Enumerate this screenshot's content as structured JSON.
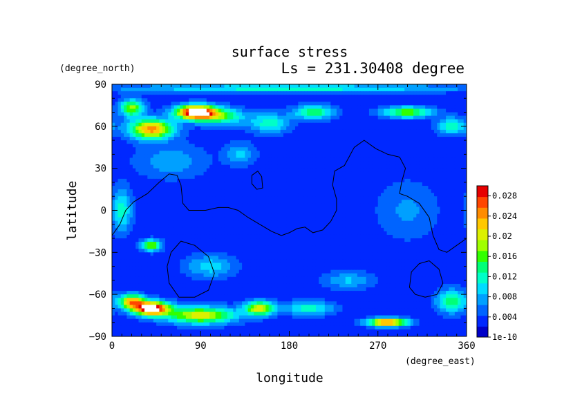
{
  "chart_data": {
    "type": "heatmap",
    "title": "surface stress",
    "subtitle": "Ls = 231.30408 degree",
    "xlabel": "longitude",
    "ylabel": "latitude",
    "x_unit": "(degree_east)",
    "y_unit": "(degree_north)",
    "xlim": [
      0,
      360
    ],
    "ylim": [
      -90,
      90
    ],
    "xticks": [
      "0",
      "90",
      "180",
      "270",
      "360"
    ],
    "xtick_values": [
      0,
      90,
      180,
      270,
      360
    ],
    "yticks": [
      "90",
      "60",
      "30",
      "0",
      "−30",
      "−60",
      "−90"
    ],
    "ytick_values": [
      90,
      60,
      30,
      0,
      -30,
      -60,
      -90
    ],
    "colorbar": {
      "labels": [
        "0.028",
        "0.024",
        "0.02",
        "0.016",
        "0.012",
        "0.008",
        "0.004",
        "1e-10"
      ],
      "label_values": [
        0.028,
        0.024,
        0.02,
        0.016,
        0.012,
        0.008,
        0.004,
        0
      ],
      "range": [
        0,
        0.03
      ],
      "colors": [
        "#0000c8",
        "#0028ff",
        "#0064ff",
        "#00a0ff",
        "#00dcff",
        "#00ffc8",
        "#00ff78",
        "#32ff00",
        "#a0ff00",
        "#dcf000",
        "#ffc800",
        "#ff8c00",
        "#ff4600",
        "#e60000"
      ]
    },
    "field": {
      "background": 0.003,
      "blobs": [
        {
          "lon": 85,
          "lat": 70,
          "slon": 20,
          "slat": 5,
          "v": 0.03
        },
        {
          "lon": 110,
          "lat": 67,
          "slon": 25,
          "slat": 6,
          "v": 0.012
        },
        {
          "lon": 40,
          "lat": 58,
          "slon": 22,
          "slat": 7,
          "v": 0.022
        },
        {
          "lon": 20,
          "lat": 73,
          "slon": 12,
          "slat": 6,
          "v": 0.015
        },
        {
          "lon": 160,
          "lat": 62,
          "slon": 20,
          "slat": 7,
          "v": 0.009
        },
        {
          "lon": 205,
          "lat": 70,
          "slon": 20,
          "slat": 5,
          "v": 0.012
        },
        {
          "lon": 300,
          "lat": 70,
          "slon": 25,
          "slat": 4,
          "v": 0.014
        },
        {
          "lon": 345,
          "lat": 60,
          "slon": 15,
          "slat": 6,
          "v": 0.01
        },
        {
          "lon": 180,
          "lat": 87,
          "slon": 180,
          "slat": 3,
          "v": 0.009
        },
        {
          "lon": 60,
          "lat": 35,
          "slon": 35,
          "slat": 12,
          "v": 0.005
        },
        {
          "lon": 10,
          "lat": 0,
          "slon": 10,
          "slat": 15,
          "v": 0.009
        },
        {
          "lon": 40,
          "lat": -25,
          "slon": 10,
          "slat": 4,
          "v": 0.015
        },
        {
          "lon": 20,
          "lat": -65,
          "slon": 12,
          "slat": 5,
          "v": 0.02
        },
        {
          "lon": 40,
          "lat": -70,
          "slon": 18,
          "slat": 5,
          "v": 0.03
        },
        {
          "lon": 90,
          "lat": -75,
          "slon": 35,
          "slat": 6,
          "v": 0.018
        },
        {
          "lon": 150,
          "lat": -70,
          "slon": 15,
          "slat": 5,
          "v": 0.018
        },
        {
          "lon": 280,
          "lat": -80,
          "slon": 20,
          "slat": 3,
          "v": 0.024
        },
        {
          "lon": 345,
          "lat": -65,
          "slon": 15,
          "slat": 8,
          "v": 0.012
        },
        {
          "lon": 100,
          "lat": -40,
          "slon": 25,
          "slat": 8,
          "v": 0.007
        },
        {
          "lon": 240,
          "lat": -50,
          "slon": 25,
          "slat": 6,
          "v": 0.006
        },
        {
          "lon": 200,
          "lat": -70,
          "slon": 25,
          "slat": 5,
          "v": 0.009
        },
        {
          "lon": 300,
          "lat": 0,
          "slon": 30,
          "slat": 20,
          "v": 0.004
        },
        {
          "lon": 130,
          "lat": 40,
          "slon": 15,
          "slat": 8,
          "v": 0.006
        }
      ]
    },
    "contours": [
      [
        [
          0,
          -18
        ],
        [
          8,
          -10
        ],
        [
          14,
          0
        ],
        [
          22,
          6
        ],
        [
          36,
          12
        ],
        [
          48,
          20
        ],
        [
          58,
          26
        ],
        [
          66,
          25
        ],
        [
          70,
          18
        ],
        [
          72,
          5
        ],
        [
          78,
          0
        ],
        [
          95,
          0
        ],
        [
          108,
          2
        ],
        [
          118,
          2
        ],
        [
          128,
          0
        ],
        [
          138,
          -5
        ],
        [
          150,
          -10
        ],
        [
          162,
          -15
        ],
        [
          172,
          -18
        ],
        [
          180,
          -16
        ],
        [
          188,
          -13
        ],
        [
          196,
          -12
        ],
        [
          204,
          -16
        ],
        [
          214,
          -14
        ],
        [
          222,
          -8
        ],
        [
          228,
          0
        ],
        [
          228,
          8
        ],
        [
          224,
          18
        ],
        [
          226,
          28
        ],
        [
          236,
          32
        ],
        [
          246,
          45
        ],
        [
          256,
          50
        ],
        [
          268,
          44
        ],
        [
          280,
          40
        ],
        [
          292,
          38
        ],
        [
          298,
          30
        ],
        [
          294,
          20
        ],
        [
          292,
          12
        ],
        [
          300,
          10
        ],
        [
          312,
          5
        ],
        [
          322,
          -5
        ],
        [
          326,
          -18
        ],
        [
          332,
          -28
        ],
        [
          340,
          -30
        ],
        [
          352,
          -24
        ],
        [
          360,
          -20
        ]
      ],
      [
        [
          142,
          25
        ],
        [
          148,
          28
        ],
        [
          152,
          24
        ],
        [
          153,
          16
        ],
        [
          147,
          15
        ],
        [
          142,
          19
        ],
        [
          142,
          25
        ]
      ],
      [
        [
          56,
          -40
        ],
        [
          60,
          -30
        ],
        [
          70,
          -22
        ],
        [
          84,
          -25
        ],
        [
          98,
          -33
        ],
        [
          104,
          -45
        ],
        [
          98,
          -57
        ],
        [
          84,
          -62
        ],
        [
          68,
          -62
        ],
        [
          58,
          -52
        ],
        [
          56,
          -40
        ]
      ],
      [
        [
          302,
          -55
        ],
        [
          304,
          -44
        ],
        [
          312,
          -38
        ],
        [
          322,
          -36
        ],
        [
          332,
          -42
        ],
        [
          336,
          -52
        ],
        [
          330,
          -60
        ],
        [
          318,
          -62
        ],
        [
          308,
          -60
        ],
        [
          302,
          -55
        ]
      ]
    ]
  }
}
